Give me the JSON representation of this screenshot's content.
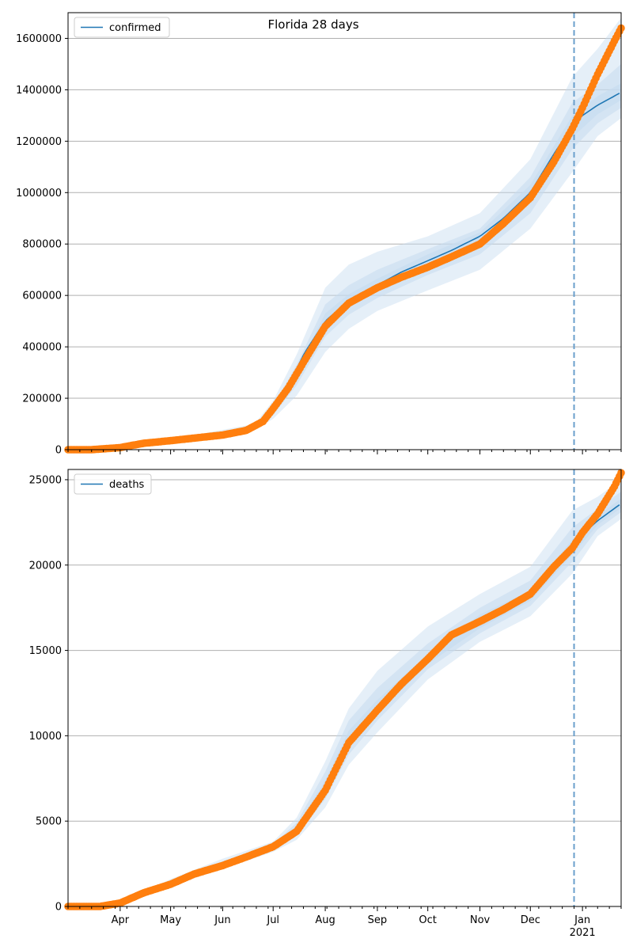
{
  "figure": {
    "title": "Florida 28 days",
    "x_axis": {
      "month_labels": [
        "Apr",
        "May",
        "Jun",
        "Jul",
        "Aug",
        "Sep",
        "Oct",
        "Nov",
        "Dec",
        "Jan"
      ],
      "year_label": "2021"
    }
  },
  "colors": {
    "model": "#1f77b4",
    "observed": "#ff7f0e",
    "band": "#c6dbef",
    "grid": "#b0b0b0",
    "forecast_line": "#6a9fcc"
  },
  "chart_data": [
    {
      "type": "line",
      "legend": [
        "confirmed"
      ],
      "legend_position": "upper-left",
      "x_range": [
        "2020-03-01",
        "2021-01-24"
      ],
      "ylim": [
        0,
        1700000
      ],
      "yticks": [
        0,
        200000,
        400000,
        600000,
        800000,
        1000000,
        1200000,
        1400000,
        1600000
      ],
      "grid": "horizontal",
      "forecast_start": "2020-12-27",
      "series": [
        {
          "name": "confirmed",
          "kind": "model",
          "x": [
            "2020-03-01",
            "2020-04-01",
            "2020-05-01",
            "2020-06-01",
            "2020-06-20",
            "2020-07-01",
            "2020-07-10",
            "2020-07-20",
            "2020-08-01",
            "2020-08-15",
            "2020-09-01",
            "2020-09-15",
            "2020-10-01",
            "2020-10-15",
            "2020-11-01",
            "2020-11-15",
            "2020-12-01",
            "2020-12-15",
            "2020-12-26",
            "2021-01-01",
            "2021-01-10",
            "2021-01-24"
          ],
          "y": [
            0,
            10000,
            35000,
            55000,
            85000,
            150000,
            250000,
            380000,
            500000,
            580000,
            640000,
            690000,
            735000,
            775000,
            830000,
            900000,
            1000000,
            1150000,
            1260000,
            1300000,
            1340000,
            1390000
          ]
        },
        {
          "name": "confirmed",
          "kind": "observed",
          "x": [
            "2020-03-01",
            "2020-03-15",
            "2020-04-01",
            "2020-04-15",
            "2020-05-01",
            "2020-05-15",
            "2020-06-01",
            "2020-06-15",
            "2020-06-25",
            "2020-07-01",
            "2020-07-10",
            "2020-07-20",
            "2020-08-01",
            "2020-08-15",
            "2020-09-01",
            "2020-09-15",
            "2020-10-01",
            "2020-10-15",
            "2020-11-01",
            "2020-11-15",
            "2020-12-01",
            "2020-12-15",
            "2020-12-26",
            "2021-01-01",
            "2021-01-10",
            "2021-01-20",
            "2021-01-24"
          ],
          "y": [
            0,
            0,
            8000,
            25000,
            35000,
            45000,
            57000,
            75000,
            110000,
            160000,
            240000,
            350000,
            480000,
            570000,
            630000,
            670000,
            710000,
            750000,
            800000,
            880000,
            980000,
            1120000,
            1250000,
            1330000,
            1460000,
            1590000,
            1640000
          ]
        }
      ],
      "bands": [
        {
          "level": "outer",
          "x": [
            "2020-03-01",
            "2020-05-01",
            "2020-06-20",
            "2020-07-01",
            "2020-07-15",
            "2020-08-01",
            "2020-08-15",
            "2020-09-01",
            "2020-10-01",
            "2020-11-01",
            "2020-12-01",
            "2020-12-26",
            "2021-01-10",
            "2021-01-24"
          ],
          "lower": [
            0,
            30000,
            75000,
            120000,
            210000,
            380000,
            470000,
            540000,
            620000,
            700000,
            860000,
            1080000,
            1220000,
            1290000
          ],
          "upper": [
            0,
            40000,
            100000,
            190000,
            370000,
            630000,
            720000,
            770000,
            830000,
            920000,
            1130000,
            1450000,
            1560000,
            1680000
          ]
        },
        {
          "level": "mid",
          "x": [
            "2020-03-01",
            "2020-05-01",
            "2020-06-20",
            "2020-07-01",
            "2020-07-15",
            "2020-08-01",
            "2020-08-15",
            "2020-09-01",
            "2020-10-01",
            "2020-11-01",
            "2020-12-01",
            "2020-12-26",
            "2021-01-10",
            "2021-01-24"
          ],
          "lower": [
            0,
            32000,
            80000,
            135000,
            250000,
            440000,
            525000,
            590000,
            680000,
            760000,
            920000,
            1170000,
            1270000,
            1330000
          ],
          "upper": [
            0,
            38000,
            92000,
            170000,
            330000,
            565000,
            640000,
            700000,
            780000,
            860000,
            1060000,
            1350000,
            1420000,
            1500000
          ]
        },
        {
          "level": "inner",
          "x": [
            "2020-03-01",
            "2020-05-01",
            "2020-06-20",
            "2020-07-01",
            "2020-07-15",
            "2020-08-01",
            "2020-08-15",
            "2020-09-01",
            "2020-10-01",
            "2020-11-01",
            "2020-12-01",
            "2020-12-26",
            "2021-01-10",
            "2021-01-24"
          ],
          "lower": [
            0,
            33000,
            82000,
            142000,
            275000,
            475000,
            555000,
            615000,
            710000,
            795000,
            960000,
            1215000,
            1305000,
            1360000
          ],
          "upper": [
            0,
            37000,
            88000,
            160000,
            305000,
            530000,
            605000,
            665000,
            760000,
            845000,
            1030000,
            1300000,
            1375000,
            1425000
          ]
        }
      ]
    },
    {
      "type": "line",
      "legend": [
        "deaths"
      ],
      "legend_position": "upper-left",
      "x_range": [
        "2020-03-01",
        "2021-01-24"
      ],
      "ylim": [
        0,
        25600
      ],
      "yticks": [
        0,
        5000,
        10000,
        15000,
        20000,
        25000
      ],
      "grid": "horizontal",
      "forecast_start": "2020-12-27",
      "series": [
        {
          "name": "deaths",
          "kind": "model",
          "x": [
            "2020-03-01",
            "2020-03-20",
            "2020-04-01",
            "2020-04-15",
            "2020-05-01",
            "2020-05-15",
            "2020-06-01",
            "2020-06-15",
            "2020-07-01",
            "2020-07-15",
            "2020-08-01",
            "2020-08-15",
            "2020-09-01",
            "2020-09-15",
            "2020-10-01",
            "2020-10-15",
            "2020-11-01",
            "2020-11-15",
            "2020-12-01",
            "2020-12-15",
            "2020-12-26",
            "2021-01-01",
            "2021-01-10",
            "2021-01-24"
          ],
          "y": [
            0,
            0,
            200,
            800,
            1400,
            2000,
            2500,
            2900,
            3500,
            4500,
            7000,
            9800,
            11700,
            13000,
            14500,
            15800,
            16700,
            17300,
            18200,
            19800,
            21000,
            21800,
            22600,
            23600
          ]
        },
        {
          "name": "deaths",
          "kind": "observed",
          "x": [
            "2020-03-01",
            "2020-03-20",
            "2020-04-01",
            "2020-04-15",
            "2020-05-01",
            "2020-05-15",
            "2020-06-01",
            "2020-06-15",
            "2020-07-01",
            "2020-07-15",
            "2020-08-01",
            "2020-08-15",
            "2020-09-01",
            "2020-09-15",
            "2020-10-01",
            "2020-10-15",
            "2020-11-01",
            "2020-11-15",
            "2020-12-01",
            "2020-12-15",
            "2020-12-26",
            "2021-01-01",
            "2021-01-10",
            "2021-01-20",
            "2021-01-24"
          ],
          "y": [
            0,
            0,
            200,
            800,
            1300,
            1900,
            2400,
            2900,
            3500,
            4400,
            6800,
            9600,
            11500,
            13000,
            14500,
            15900,
            16700,
            17400,
            18300,
            19900,
            21000,
            21900,
            23000,
            24600,
            25400
          ]
        }
      ],
      "bands": [
        {
          "level": "outer",
          "x": [
            "2020-03-01",
            "2020-04-01",
            "2020-05-01",
            "2020-06-01",
            "2020-07-01",
            "2020-07-15",
            "2020-08-01",
            "2020-08-15",
            "2020-09-01",
            "2020-10-01",
            "2020-11-01",
            "2020-12-01",
            "2020-12-26",
            "2021-01-10",
            "2021-01-24"
          ],
          "lower": [
            0,
            150,
            1200,
            2200,
            3200,
            3900,
            5800,
            8300,
            10200,
            13300,
            15500,
            17000,
            19500,
            21700,
            22700
          ],
          "upper": [
            0,
            250,
            1600,
            2800,
            3800,
            5200,
            8500,
            11600,
            13800,
            16400,
            18300,
            19900,
            23200,
            24000,
            25000
          ]
        },
        {
          "level": "mid",
          "x": [
            "2020-03-01",
            "2020-04-01",
            "2020-05-01",
            "2020-06-01",
            "2020-07-01",
            "2020-07-15",
            "2020-08-01",
            "2020-08-15",
            "2020-09-01",
            "2020-10-01",
            "2020-11-01",
            "2020-12-01",
            "2020-12-26",
            "2021-01-10",
            "2021-01-24"
          ],
          "lower": [
            0,
            170,
            1300,
            2350,
            3350,
            4150,
            6300,
            8900,
            10900,
            13900,
            16000,
            17600,
            20200,
            22100,
            23100
          ],
          "upper": [
            0,
            230,
            1500,
            2650,
            3650,
            4900,
            7900,
            10900,
            12800,
            15400,
            17500,
            19100,
            22200,
            23300,
            24300
          ]
        },
        {
          "level": "inner",
          "x": [
            "2020-03-01",
            "2020-04-01",
            "2020-05-01",
            "2020-06-01",
            "2020-07-01",
            "2020-07-15",
            "2020-08-01",
            "2020-08-15",
            "2020-09-01",
            "2020-10-01",
            "2020-11-01",
            "2020-12-01",
            "2020-12-26",
            "2021-01-10",
            "2021-01-24"
          ],
          "lower": [
            0,
            185,
            1350,
            2430,
            3430,
            4300,
            6600,
            9300,
            11300,
            14200,
            16300,
            17900,
            20600,
            22350,
            23350
          ],
          "upper": [
            0,
            215,
            1450,
            2570,
            3570,
            4700,
            7400,
            10300,
            12100,
            14800,
            17100,
            18500,
            21500,
            22900,
            23900
          ]
        }
      ]
    }
  ]
}
